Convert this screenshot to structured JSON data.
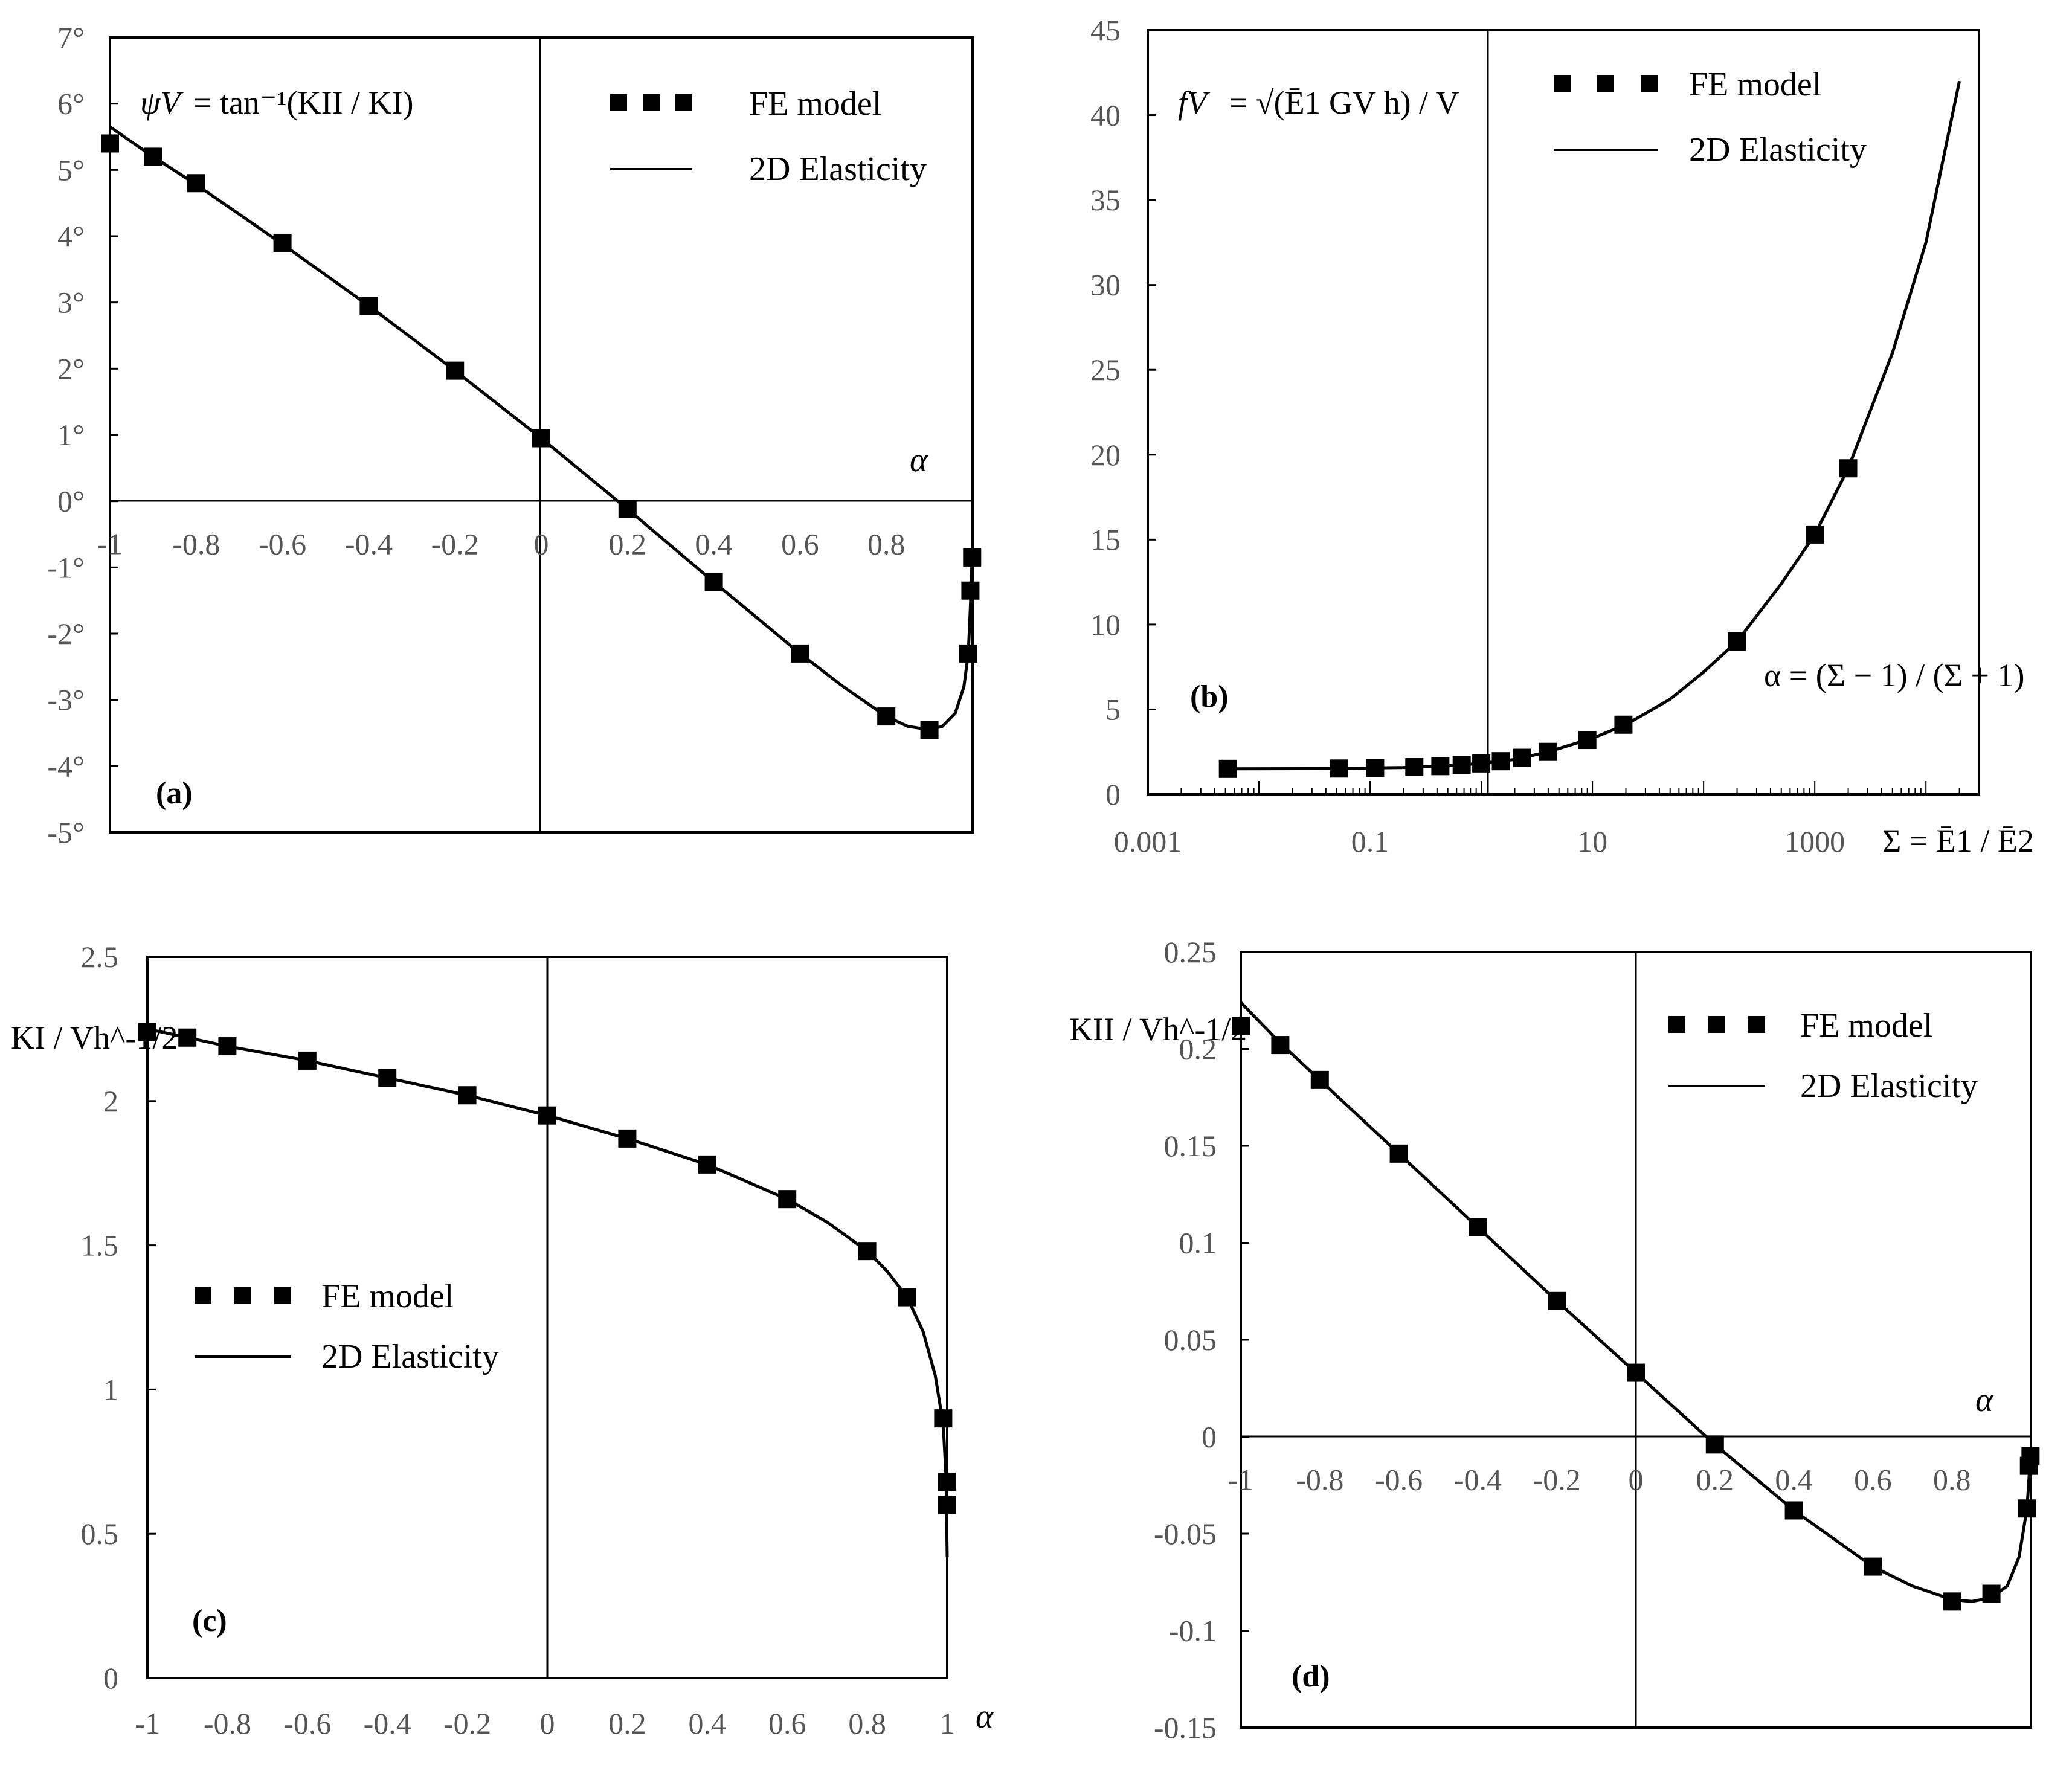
{
  "chart_data": [
    {
      "id": "a",
      "type": "line",
      "panel_label": "(a)",
      "xlabel": "α",
      "xlim": [
        -1,
        1
      ],
      "ylim": [
        -5,
        7
      ],
      "x_ticks": [
        "-1",
        "-0.8",
        "-0.6",
        "-0.4",
        "-0.2",
        "0",
        "0.2",
        "0.4",
        "0.6",
        "0.8"
      ],
      "y_ticks": [
        "7°",
        "6°",
        "5°",
        "4°",
        "3°",
        "2°",
        "1°",
        "0°",
        "-1°",
        "-2°",
        "-3°",
        "-4°",
        "-5°"
      ],
      "formula": {
        "lhs": "ψV",
        "rhs": "= tan⁻¹(KII / KI)"
      },
      "legend": [
        "FE model",
        "2D Elasticity"
      ],
      "series": [
        {
          "name": "FE model",
          "style": "markers",
          "x": [
            -1,
            -0.9,
            -0.8,
            -0.6,
            -0.4,
            -0.2,
            0,
            0.2,
            0.4,
            0.6,
            0.8,
            0.9,
            0.99,
            0.995,
            0.999
          ],
          "y": [
            5.4,
            5.2,
            4.8,
            3.9,
            2.95,
            1.97,
            0.95,
            -0.12,
            -1.22,
            -2.3,
            -3.25,
            -3.45,
            -2.3,
            -1.35,
            -0.85
          ]
        },
        {
          "name": "2D Elasticity",
          "style": "line",
          "x": [
            -1,
            -0.9,
            -0.8,
            -0.6,
            -0.4,
            -0.2,
            0,
            0.2,
            0.4,
            0.6,
            0.7,
            0.8,
            0.85,
            0.9,
            0.93,
            0.96,
            0.98,
            0.99,
            0.995,
            0.999
          ],
          "y": [
            5.65,
            5.2,
            4.78,
            3.88,
            2.95,
            1.97,
            0.95,
            -0.12,
            -1.22,
            -2.3,
            -2.8,
            -3.25,
            -3.4,
            -3.45,
            -3.4,
            -3.2,
            -2.8,
            -2.3,
            -1.6,
            -0.85
          ]
        }
      ]
    },
    {
      "id": "b",
      "type": "line",
      "panel_label": "(b)",
      "xscale": "log",
      "xlabel": "Σ = Ē1 / Ē2",
      "xlim": [
        0.001,
        30000
      ],
      "ylim": [
        0,
        45
      ],
      "x_ticks": [
        "0.001",
        "0.1",
        "10",
        "1000"
      ],
      "y_ticks": [
        "0",
        "5",
        "10",
        "15",
        "20",
        "25",
        "30",
        "35",
        "40",
        "45"
      ],
      "formula": {
        "lhs": "fV",
        "rhs": "= √(Ē1 GV h) / V"
      },
      "alpha_def": "α = (Σ − 1) / (Σ + 1)",
      "legend": [
        "FE model",
        "2D Elasticity"
      ],
      "series": [
        {
          "name": "FE model",
          "style": "markers",
          "x": [
            0.00526,
            0.0526,
            0.111,
            0.25,
            0.4286,
            0.6667,
            1,
            1.5,
            2.333,
            4,
            9,
            19,
            199,
            999,
            1999
          ],
          "y": [
            1.5,
            1.52,
            1.55,
            1.6,
            1.66,
            1.73,
            1.82,
            1.95,
            2.15,
            2.5,
            3.2,
            4.1,
            9.0,
            15.3,
            19.2
          ]
        },
        {
          "name": "2D Elasticity",
          "style": "line",
          "x": [
            0.00526,
            0.05,
            0.2,
            0.5,
            1,
            2,
            4,
            10,
            20,
            50,
            100,
            200,
            500,
            1000,
            2000,
            5000,
            10000,
            20000
          ],
          "y": [
            1.5,
            1.52,
            1.58,
            1.68,
            1.82,
            2.05,
            2.5,
            3.3,
            4.1,
            5.6,
            7.2,
            9.0,
            12.4,
            15.3,
            19.2,
            26.0,
            32.5,
            42.0
          ]
        }
      ]
    },
    {
      "id": "c",
      "type": "line",
      "panel_label": "(c)",
      "xlabel": "α",
      "ylabel": "KI / Vh^-1/2",
      "xlim": [
        -1,
        1
      ],
      "ylim": [
        0,
        2.5
      ],
      "x_ticks": [
        "-1",
        "-0.8",
        "-0.6",
        "-0.4",
        "-0.2",
        "0",
        "0.2",
        "0.4",
        "0.6",
        "0.8",
        "1"
      ],
      "y_ticks": [
        "0",
        "0.5",
        "1",
        "1.5",
        "2",
        "2.5"
      ],
      "legend": [
        "FE model",
        "2D Elasticity"
      ],
      "series": [
        {
          "name": "FE model",
          "style": "markers",
          "x": [
            -1,
            -0.9,
            -0.8,
            -0.6,
            -0.4,
            -0.2,
            0,
            0.2,
            0.4,
            0.6,
            0.8,
            0.9,
            0.99,
            0.999,
            0.9995
          ],
          "y": [
            2.24,
            2.22,
            2.19,
            2.14,
            2.08,
            2.02,
            1.95,
            1.87,
            1.78,
            1.66,
            1.48,
            1.32,
            0.9,
            0.68,
            0.6
          ]
        },
        {
          "name": "2D Elasticity",
          "style": "line",
          "x": [
            -1,
            -0.9,
            -0.8,
            -0.6,
            -0.4,
            -0.2,
            0,
            0.2,
            0.4,
            0.6,
            0.7,
            0.8,
            0.85,
            0.9,
            0.94,
            0.97,
            0.99,
            0.997,
            1.0
          ],
          "y": [
            2.25,
            2.22,
            2.19,
            2.14,
            2.08,
            2.02,
            1.95,
            1.87,
            1.78,
            1.66,
            1.58,
            1.48,
            1.41,
            1.32,
            1.2,
            1.05,
            0.88,
            0.7,
            0.42
          ]
        }
      ]
    },
    {
      "id": "d",
      "type": "line",
      "panel_label": "(d)",
      "xlabel": "α",
      "ylabel": "KII / Vh^-1/2",
      "xlim": [
        -1,
        1
      ],
      "ylim": [
        -0.15,
        0.25
      ],
      "x_ticks": [
        "-1",
        "-0.8",
        "-0.6",
        "-0.4",
        "-0.2",
        "0",
        "0.2",
        "0.4",
        "0.6",
        "0.8"
      ],
      "y_ticks": [
        "0.25",
        "0.2",
        "0.15",
        "0.1",
        "0.05",
        "0",
        "-0.05",
        "-0.1",
        "-0.15"
      ],
      "legend": [
        "FE model",
        "2D Elasticity"
      ],
      "series": [
        {
          "name": "FE model",
          "style": "markers",
          "x": [
            -1,
            -0.9,
            -0.8,
            -0.6,
            -0.4,
            -0.2,
            0,
            0.2,
            0.4,
            0.6,
            0.8,
            0.9,
            0.99,
            0.995,
            0.999
          ],
          "y": [
            0.212,
            0.202,
            0.184,
            0.146,
            0.108,
            0.07,
            0.033,
            -0.004,
            -0.038,
            -0.067,
            -0.085,
            -0.081,
            -0.037,
            -0.015,
            -0.01
          ]
        },
        {
          "name": "2D Elasticity",
          "style": "line",
          "x": [
            -1,
            -0.9,
            -0.8,
            -0.6,
            -0.4,
            -0.2,
            0,
            0.2,
            0.4,
            0.6,
            0.7,
            0.8,
            0.85,
            0.9,
            0.94,
            0.97,
            0.99,
            0.999
          ],
          "y": [
            0.224,
            0.203,
            0.184,
            0.146,
            0.108,
            0.07,
            0.033,
            -0.004,
            -0.038,
            -0.067,
            -0.077,
            -0.084,
            -0.085,
            -0.083,
            -0.077,
            -0.062,
            -0.037,
            -0.01
          ]
        }
      ]
    }
  ]
}
